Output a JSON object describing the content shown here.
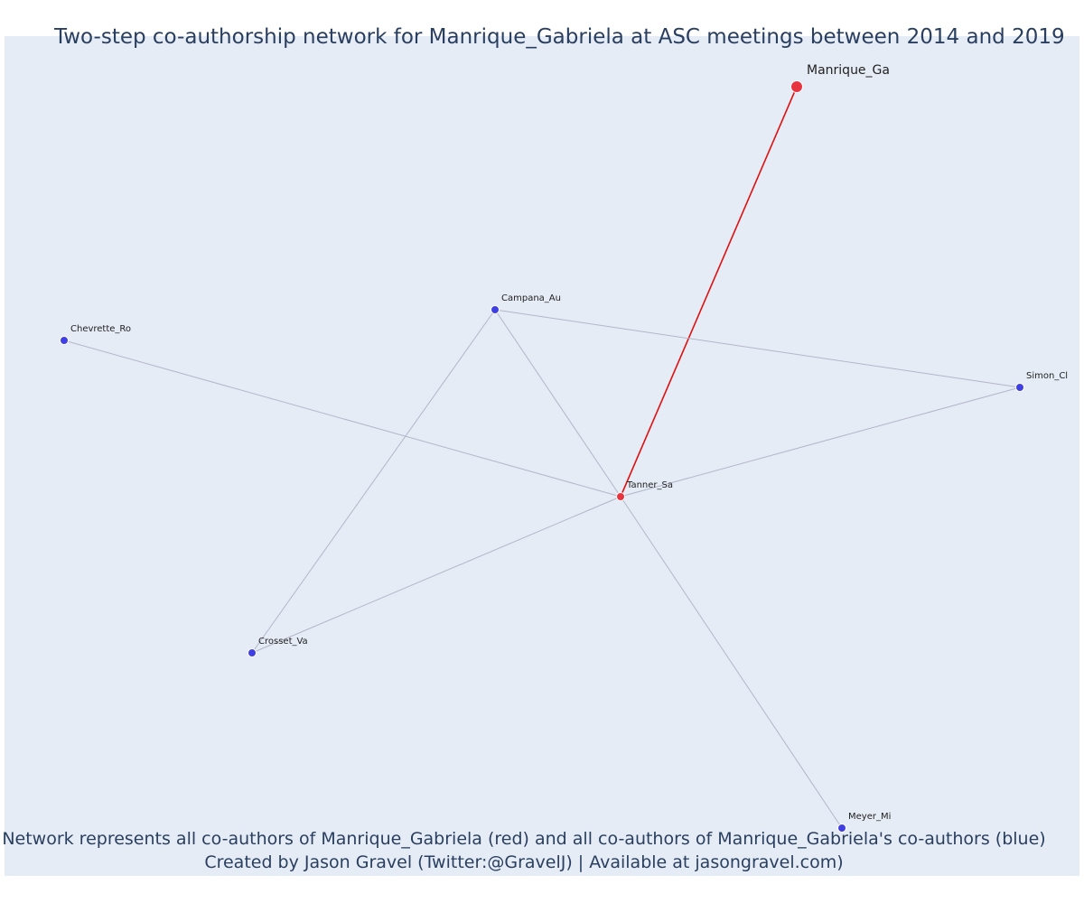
{
  "title": "Two-step co-authorship network for Manrique_Gabriela at ASC meetings between 2014 and 2019",
  "footnote_line1": "Network represents all co-authors of Manrique_Gabriela (red) and all co-authors of Manrique_Gabriela's co-authors (blue)",
  "footnote_line2": "Created by Jason Gravel (Twitter:@GravelJ) | Available at jasongravel.com)",
  "colors": {
    "background": "#e5ecf6",
    "ego": "#e8343e",
    "first_step": "#e8343e",
    "second_step": "#3f3fe3",
    "ego_edge": "#e01010",
    "edge": "#b4b6c8"
  },
  "chart_data": {
    "type": "network",
    "nodes": [
      {
        "id": "Manrique_Ga",
        "label": "Manrique_Ga",
        "group": "ego"
      },
      {
        "id": "Tanner_Sa",
        "label": "Tanner_Sa",
        "group": "first_step"
      },
      {
        "id": "Campana_Au",
        "label": "Campana_Au",
        "group": "second_step"
      },
      {
        "id": "Chevrette_Ro",
        "label": "Chevrette_Ro",
        "group": "second_step"
      },
      {
        "id": "Simon_Cl",
        "label": "Simon_Cl",
        "group": "second_step"
      },
      {
        "id": "Crosset_Va",
        "label": "Crosset_Va",
        "group": "second_step"
      },
      {
        "id": "Meyer_Mi",
        "label": "Meyer_Mi",
        "group": "second_step"
      }
    ],
    "edges": [
      {
        "source": "Manrique_Ga",
        "target": "Tanner_Sa",
        "type": "ego"
      },
      {
        "source": "Tanner_Sa",
        "target": "Campana_Au",
        "type": "other"
      },
      {
        "source": "Tanner_Sa",
        "target": "Chevrette_Ro",
        "type": "other"
      },
      {
        "source": "Tanner_Sa",
        "target": "Simon_Cl",
        "type": "other"
      },
      {
        "source": "Tanner_Sa",
        "target": "Crosset_Va",
        "type": "other"
      },
      {
        "source": "Tanner_Sa",
        "target": "Meyer_Mi",
        "type": "other"
      },
      {
        "source": "Campana_Au",
        "target": "Simon_Cl",
        "type": "other"
      },
      {
        "source": "Campana_Au",
        "target": "Crosset_Va",
        "type": "other"
      }
    ]
  }
}
